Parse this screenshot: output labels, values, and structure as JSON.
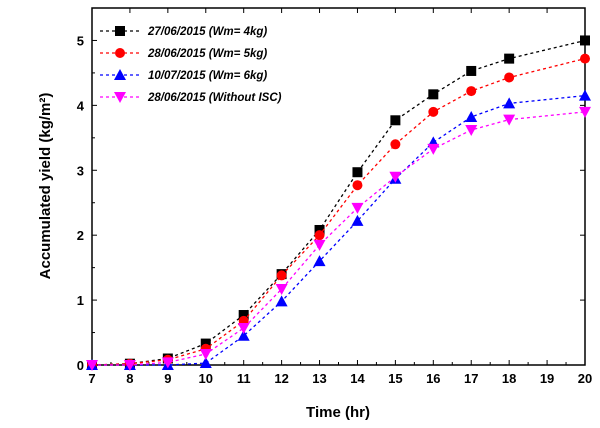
{
  "chart_data": {
    "type": "line",
    "xlabel": "Time (hr)",
    "ylabel": "Accumulated yield (kg/m²)",
    "xlim": [
      7,
      20
    ],
    "ylim": [
      0,
      5.5
    ],
    "xticks": [
      7,
      8,
      9,
      10,
      11,
      12,
      13,
      14,
      15,
      16,
      17,
      18,
      19,
      20
    ],
    "yticks": [
      0,
      1,
      2,
      3,
      4,
      5
    ],
    "grid": false,
    "legend_position": "top-left",
    "series": [
      {
        "name": "27/06/2015 (Wm= 4kg)",
        "color": "#000000",
        "marker": "square",
        "x": [
          7,
          8,
          9,
          10,
          11,
          12,
          13,
          14,
          15,
          16,
          17,
          18,
          20
        ],
        "y": [
          0.0,
          0.02,
          0.1,
          0.33,
          0.77,
          1.4,
          2.08,
          2.97,
          3.77,
          4.17,
          4.53,
          4.72,
          5.0
        ]
      },
      {
        "name": "28/06/2015 (Wm= 5kg)",
        "color": "#ff0000",
        "marker": "circle",
        "x": [
          7,
          8,
          9,
          10,
          11,
          12,
          13,
          14,
          15,
          16,
          17,
          18,
          20
        ],
        "y": [
          0.0,
          0.02,
          0.08,
          0.25,
          0.68,
          1.38,
          2.0,
          2.77,
          3.4,
          3.9,
          4.22,
          4.43,
          4.72
        ]
      },
      {
        "name": "10/07/2015 (Wm= 6kg)",
        "color": "#0000ff",
        "marker": "triangle",
        "x": [
          7,
          8,
          9,
          10,
          11,
          12,
          13,
          14,
          15,
          16,
          17,
          18,
          20
        ],
        "y": [
          0.0,
          0.0,
          0.0,
          0.03,
          0.45,
          0.98,
          1.6,
          2.22,
          2.87,
          3.43,
          3.82,
          4.03,
          4.15
        ]
      },
      {
        "name": "28/06/2015 (Without ISC)",
        "color": "#ff00ff",
        "marker": "triangle-down",
        "x": [
          7,
          8,
          9,
          10,
          11,
          12,
          13,
          14,
          15,
          16,
          17,
          18,
          20
        ],
        "y": [
          0.0,
          0.0,
          0.04,
          0.17,
          0.57,
          1.17,
          1.85,
          2.42,
          2.9,
          3.33,
          3.62,
          3.78,
          3.9
        ]
      }
    ]
  }
}
